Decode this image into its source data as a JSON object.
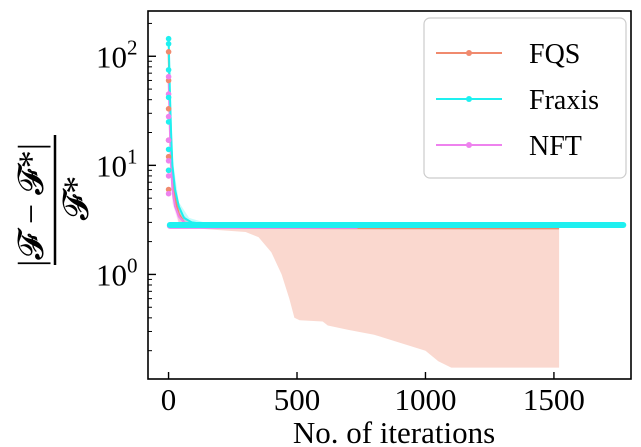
{
  "chart_data": {
    "type": "line",
    "title": "",
    "xlabel": "No. of iterations",
    "ylabel": "|F − F*| / F*",
    "ylabel_parts": {
      "numerator": "|𝓕 − 𝓕*|",
      "denominator": "𝓕*"
    },
    "xlim": [
      -80,
      1800
    ],
    "ylim": [
      0.11,
      260
    ],
    "yscale": "log",
    "grid": false,
    "legend_position": "top-right",
    "x_ticks": [
      0,
      500,
      1000,
      1500
    ],
    "x_tick_labels": [
      "0",
      "500",
      "1000",
      "1500"
    ],
    "y_ticks": [
      1,
      10,
      100
    ],
    "y_tick_labels": [
      {
        "base": "10",
        "exp": "0"
      },
      {
        "base": "10",
        "exp": "1"
      },
      {
        "base": "10",
        "exp": "2"
      }
    ],
    "series": [
      {
        "name": "FQS",
        "color": "#f08a6e",
        "line_points": [
          [
            0,
            110
          ],
          [
            3,
            60
          ],
          [
            6,
            33
          ],
          [
            10,
            17
          ],
          [
            15,
            9
          ],
          [
            25,
            5
          ],
          [
            40,
            3.6
          ],
          [
            60,
            3.0
          ],
          [
            90,
            2.8
          ],
          [
            150,
            2.72
          ],
          [
            300,
            2.68
          ],
          [
            600,
            2.66
          ],
          [
            1000,
            2.65
          ],
          [
            1520,
            2.64
          ]
        ],
        "markers": [
          [
            0,
            110
          ],
          [
            0,
            60
          ],
          [
            0,
            33
          ],
          [
            0,
            17
          ],
          [
            0,
            12
          ],
          [
            0,
            9
          ],
          [
            0,
            6
          ]
        ],
        "band": {
          "x": [
            0,
            5,
            15,
            40,
            80,
            150,
            300,
            350,
            400,
            440,
            470,
            490,
            510,
            600,
            620,
            700,
            800,
            1000,
            1050,
            1100,
            1300,
            1520
          ],
          "upper": [
            150,
            40,
            10,
            4.0,
            3.0,
            2.85,
            2.8,
            2.8,
            2.79,
            2.79,
            2.79,
            2.79,
            2.79,
            2.79,
            2.79,
            2.79,
            2.79,
            2.79,
            2.79,
            2.79,
            2.79,
            2.79
          ],
          "lower": [
            30,
            10,
            5,
            3.0,
            2.7,
            2.6,
            2.45,
            2.2,
            1.6,
            1.0,
            0.6,
            0.4,
            0.38,
            0.37,
            0.34,
            0.31,
            0.28,
            0.2,
            0.16,
            0.14,
            0.14,
            0.14
          ]
        }
      },
      {
        "name": "Fraxis",
        "color": "#1ef0f0",
        "line_points": [
          [
            0,
            145
          ],
          [
            3,
            80
          ],
          [
            6,
            40
          ],
          [
            10,
            20
          ],
          [
            15,
            10
          ],
          [
            25,
            6
          ],
          [
            40,
            4.2
          ],
          [
            60,
            3.3
          ],
          [
            90,
            3.0
          ],
          [
            150,
            2.87
          ],
          [
            400,
            2.85
          ],
          [
            800,
            2.84
          ],
          [
            1200,
            2.84
          ],
          [
            1770,
            2.84
          ]
        ],
        "markers": [
          [
            0,
            145
          ],
          [
            0,
            130
          ],
          [
            0,
            75
          ],
          [
            0,
            42
          ],
          [
            0,
            25
          ],
          [
            0,
            14
          ],
          [
            0,
            9
          ]
        ],
        "dense_marker_range": [
          5,
          1770
        ],
        "band": {
          "x": [
            0,
            5,
            15,
            40,
            80,
            150,
            1770
          ],
          "upper": [
            170,
            50,
            12,
            4.6,
            3.3,
            2.95,
            2.93
          ],
          "lower": [
            90,
            25,
            7,
            3.3,
            2.8,
            2.78,
            2.77
          ]
        }
      },
      {
        "name": "NFT",
        "color": "#ee82ee",
        "line_points": [
          [
            0,
            65
          ],
          [
            3,
            35
          ],
          [
            6,
            18
          ],
          [
            10,
            10
          ],
          [
            15,
            6
          ],
          [
            25,
            4.2
          ],
          [
            40,
            3.4
          ],
          [
            60,
            3.0
          ],
          [
            90,
            2.85
          ],
          [
            150,
            2.8
          ],
          [
            400,
            2.79
          ],
          [
            730,
            2.79
          ]
        ],
        "markers": [
          [
            0,
            65
          ],
          [
            0,
            45
          ],
          [
            0,
            28
          ],
          [
            0,
            17
          ],
          [
            0,
            11
          ],
          [
            0,
            8
          ],
          [
            0,
            5.5
          ]
        ],
        "dense_marker_range": [
          5,
          730
        ],
        "band": {
          "x": [
            0,
            5,
            15,
            40,
            80,
            150,
            730
          ],
          "upper": [
            90,
            25,
            8,
            3.9,
            3.1,
            2.88,
            2.85
          ],
          "lower": [
            40,
            12,
            4.5,
            2.9,
            2.7,
            2.7,
            2.72
          ]
        }
      }
    ]
  }
}
